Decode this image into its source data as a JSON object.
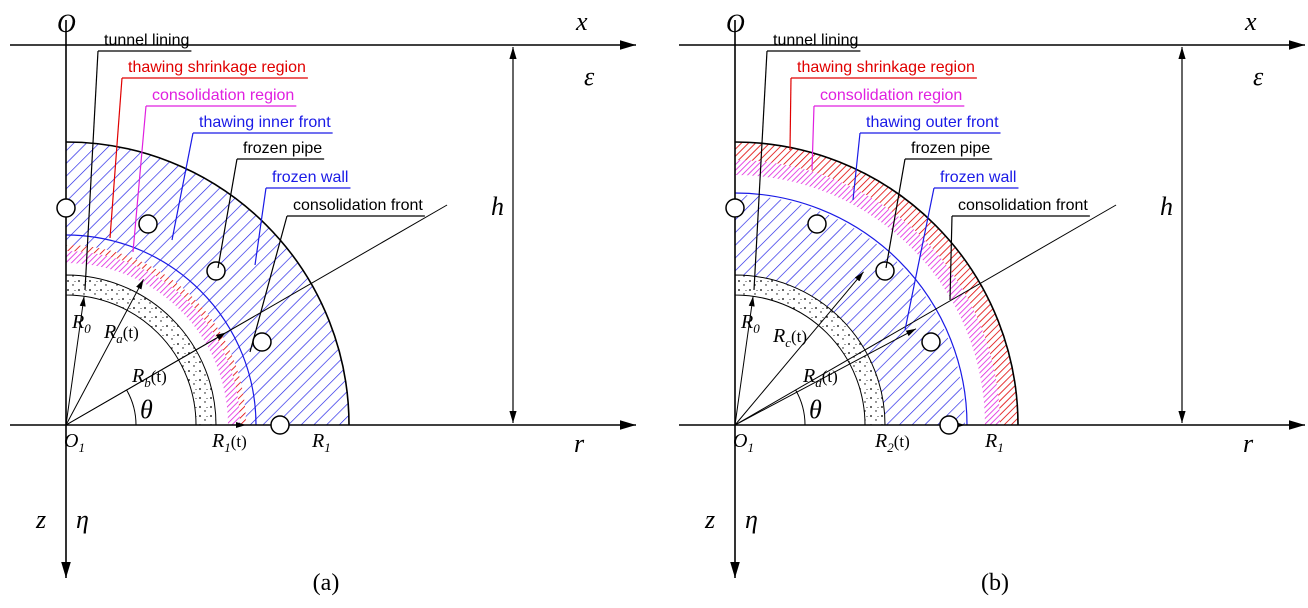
{
  "panels": [
    {
      "caption": "(a)",
      "symbols": {
        "o": "O",
        "x": "x",
        "epsilon": "ε",
        "h": "h",
        "r": "r",
        "z": "z",
        "eta": "η",
        "theta": "θ"
      },
      "subscripted": [
        {
          "base": "O",
          "sub": "1"
        },
        {
          "base": "R",
          "sub": "0"
        },
        {
          "base": "R",
          "sub": "a",
          "suffix": "(t)"
        },
        {
          "base": "R",
          "sub": "b",
          "suffix": "(t)"
        },
        {
          "base": "R",
          "sub": "1",
          "suffix": "(t)"
        },
        {
          "base": "R",
          "sub": "1"
        }
      ],
      "annotations": [
        {
          "text": "tunnel lining",
          "color": "#000000"
        },
        {
          "text": "thawing shrinkage region",
          "color": "#e00000"
        },
        {
          "text": "consolidation region",
          "color": "#e020e0"
        },
        {
          "text": "thawing inner front",
          "color": "#1a1ae6"
        },
        {
          "text": "frozen pipe",
          "color": "#000000"
        },
        {
          "text": "frozen wall",
          "color": "#1a1ae6"
        },
        {
          "text": "consolidation front",
          "color": "#000000"
        }
      ]
    },
    {
      "caption": "(b)",
      "symbols": {
        "o": "O",
        "x": "x",
        "epsilon": "ε",
        "h": "h",
        "r": "r",
        "z": "z",
        "eta": "η",
        "theta": "θ"
      },
      "subscripted": [
        {
          "base": "O",
          "sub": "1"
        },
        {
          "base": "R",
          "sub": "0"
        },
        {
          "base": "R",
          "sub": "c",
          "suffix": "(t)"
        },
        {
          "base": "R",
          "sub": "d",
          "suffix": "(t)"
        },
        {
          "base": "R",
          "sub": "2",
          "suffix": "(t)"
        },
        {
          "base": "R",
          "sub": "1"
        }
      ],
      "annotations": [
        {
          "text": "tunnel lining",
          "color": "#000000"
        },
        {
          "text": "thawing shrinkage region",
          "color": "#e00000"
        },
        {
          "text": "consolidation region",
          "color": "#e020e0"
        },
        {
          "text": "thawing outer front",
          "color": "#1a1ae6"
        },
        {
          "text": "frozen pipe",
          "color": "#000000"
        },
        {
          "text": "frozen wall",
          "color": "#1a1ae6"
        },
        {
          "text": "consolidation front",
          "color": "#000000"
        }
      ]
    }
  ]
}
